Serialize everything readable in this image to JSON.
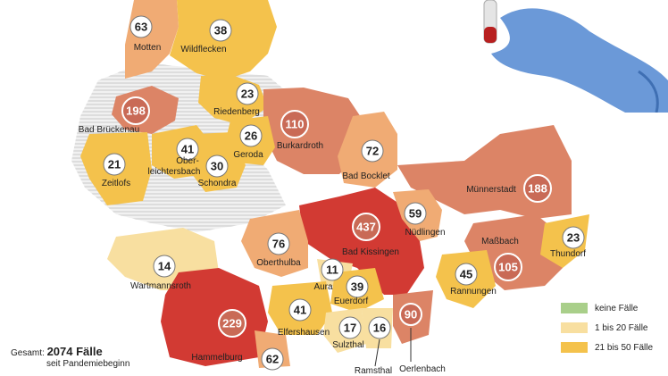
{
  "colors": {
    "none": "#a9cf8a",
    "low": "#f8dfa0",
    "mid": "#f4c24c",
    "high": "#f0ab74",
    "higher": "#dc8466",
    "highest": "#d23a33",
    "nodata": "#e7e7e7",
    "circle_dark": "#c96a56",
    "circle_light": "#ffffff"
  },
  "total": {
    "prefix": "Gesamt:",
    "value": "2074 Fälle",
    "sub": "seit Pandemiebeginn"
  },
  "legend": [
    {
      "label": "keine Fälle",
      "color": "#a9cf8a"
    },
    {
      "label": "1 bis 20 Fälle",
      "color": "#f8dfa0"
    },
    {
      "label": "21 bis 50 Fälle",
      "color": "#f4c24c"
    }
  ],
  "municipalities": [
    {
      "name": "Motten",
      "count": "63"
    },
    {
      "name": "Wildflecken",
      "count": "38"
    },
    {
      "name": "Bad Brückenau",
      "count": "198"
    },
    {
      "name": "Riedenberg",
      "count": "23"
    },
    {
      "name": "Burkardroth",
      "count": "110"
    },
    {
      "name": "Geroda",
      "count": "26"
    },
    {
      "name": "Ober-",
      "name2": "leichtersbach",
      "count": "41"
    },
    {
      "name": "Zeitlofs",
      "count": "21"
    },
    {
      "name": "Schondra",
      "count": "30"
    },
    {
      "name": "Bad Bocklet",
      "count": "72"
    },
    {
      "name": "Münnerstadt",
      "count": "188"
    },
    {
      "name": "Bad Kissingen",
      "count": "437"
    },
    {
      "name": "Nüdlingen",
      "count": "59"
    },
    {
      "name": "Oberthulba",
      "count": "76"
    },
    {
      "name": "Maßbach",
      "count": "105"
    },
    {
      "name": "Thundorf",
      "count": "23"
    },
    {
      "name": "Wartmannsroth",
      "count": "14"
    },
    {
      "name": "Aura",
      "count": "11"
    },
    {
      "name": "Euerdorf",
      "count": "39"
    },
    {
      "name": "Rannungen",
      "count": "45"
    },
    {
      "name": "Elfershausen",
      "count": "41"
    },
    {
      "name": "Hammelburg",
      "count": "229"
    },
    {
      "name": "Sulzthal",
      "count": "17"
    },
    {
      "name": "Ramsthal",
      "count": "16"
    },
    {
      "name": "Oerlenbach",
      "count": "90"
    },
    {
      "name": "",
      "count": "62"
    }
  ]
}
